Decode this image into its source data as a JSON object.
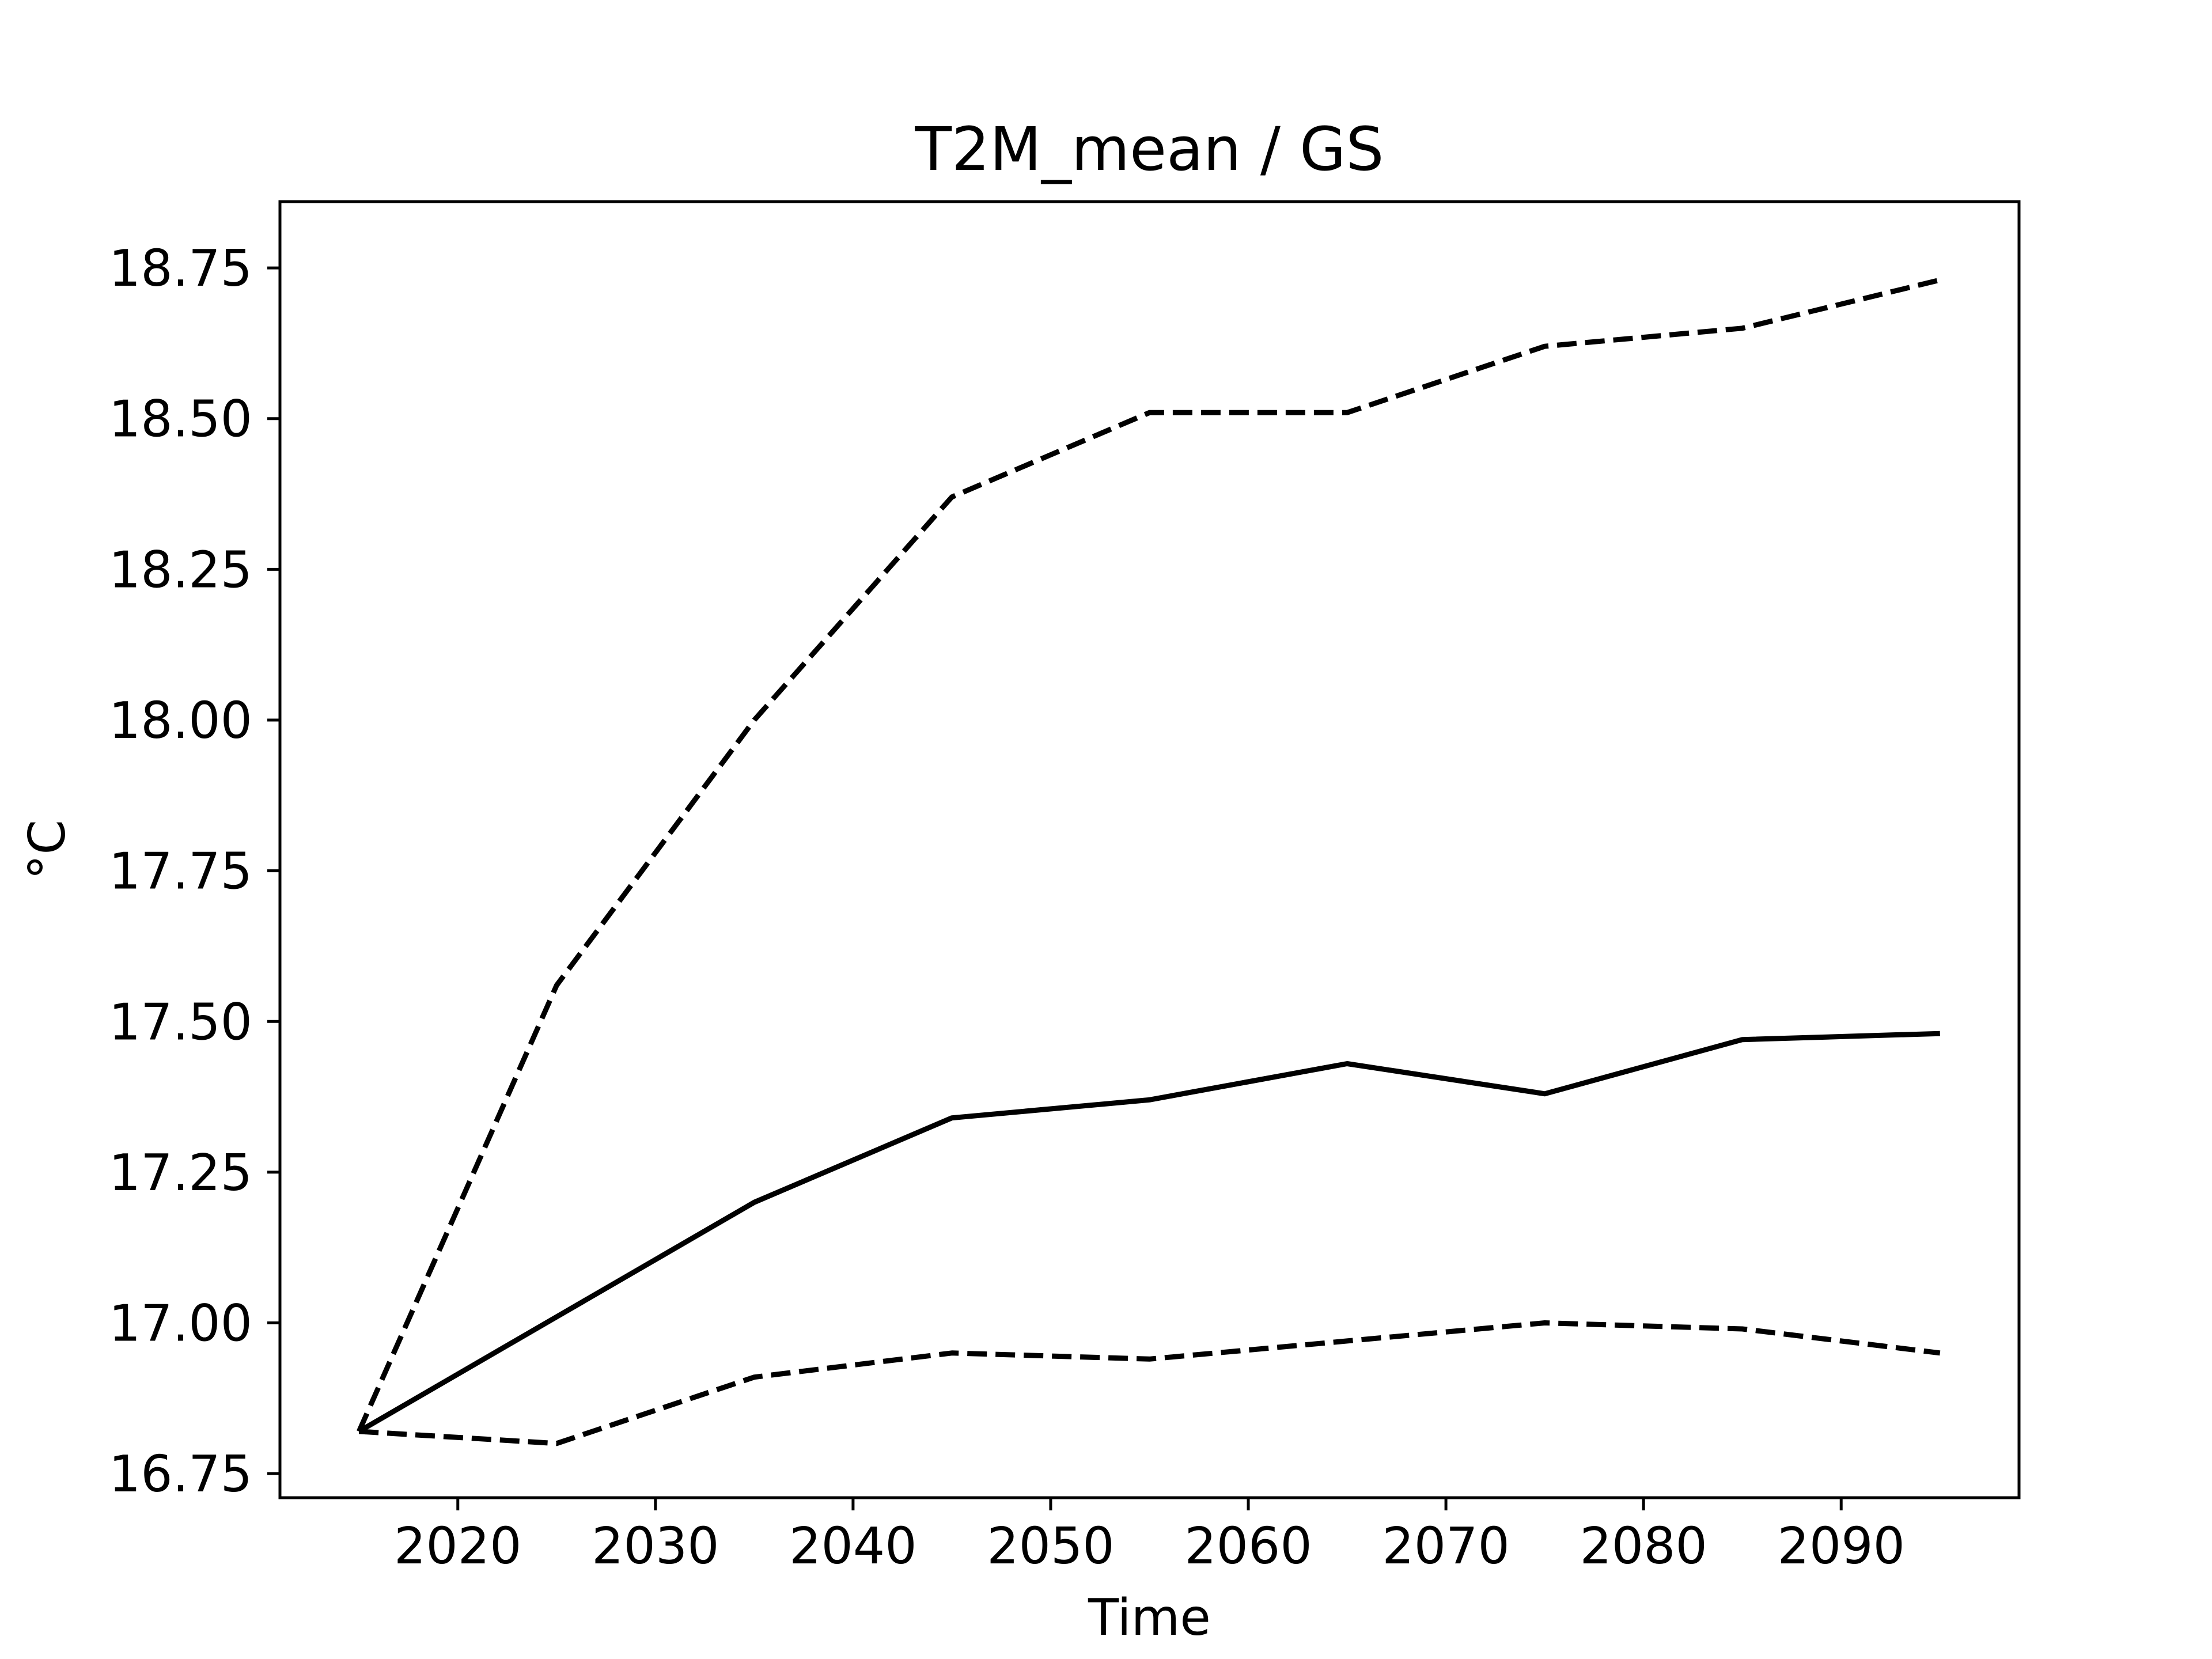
{
  "chart_data": {
    "type": "line",
    "title": "T2M_mean / GS",
    "xlabel": "Time",
    "ylabel": "°C",
    "xlim": [
      2011,
      2099
    ],
    "ylim": [
      16.71,
      18.86
    ],
    "xticks": [
      2020,
      2030,
      2040,
      2050,
      2060,
      2070,
      2080,
      2090
    ],
    "xtick_labels": [
      "2020",
      "2030",
      "2040",
      "2050",
      "2060",
      "2070",
      "2080",
      "2090"
    ],
    "yticks": [
      16.75,
      17.0,
      17.25,
      17.5,
      17.75,
      18.0,
      18.25,
      18.5,
      18.75
    ],
    "ytick_labels": [
      "16.75",
      "17.00",
      "17.25",
      "17.50",
      "17.75",
      "18.00",
      "18.25",
      "18.50",
      "18.75"
    ],
    "grid": false,
    "legend": "none",
    "x": [
      2015,
      2025,
      2035,
      2045,
      2055,
      2065,
      2075,
      2085,
      2095
    ],
    "series": [
      {
        "style": "dashed",
        "color": "#000000",
        "values": [
          16.82,
          17.56,
          18.0,
          18.37,
          18.51,
          18.51,
          18.62,
          18.65,
          18.73
        ]
      },
      {
        "style": "solid",
        "color": "#000000",
        "values": [
          16.82,
          17.01,
          17.2,
          17.34,
          17.37,
          17.43,
          17.38,
          17.47,
          17.48
        ]
      },
      {
        "style": "dashed",
        "color": "#000000",
        "values": [
          16.82,
          16.8,
          16.91,
          16.95,
          16.94,
          16.97,
          17.0,
          16.99,
          16.95
        ]
      }
    ]
  }
}
